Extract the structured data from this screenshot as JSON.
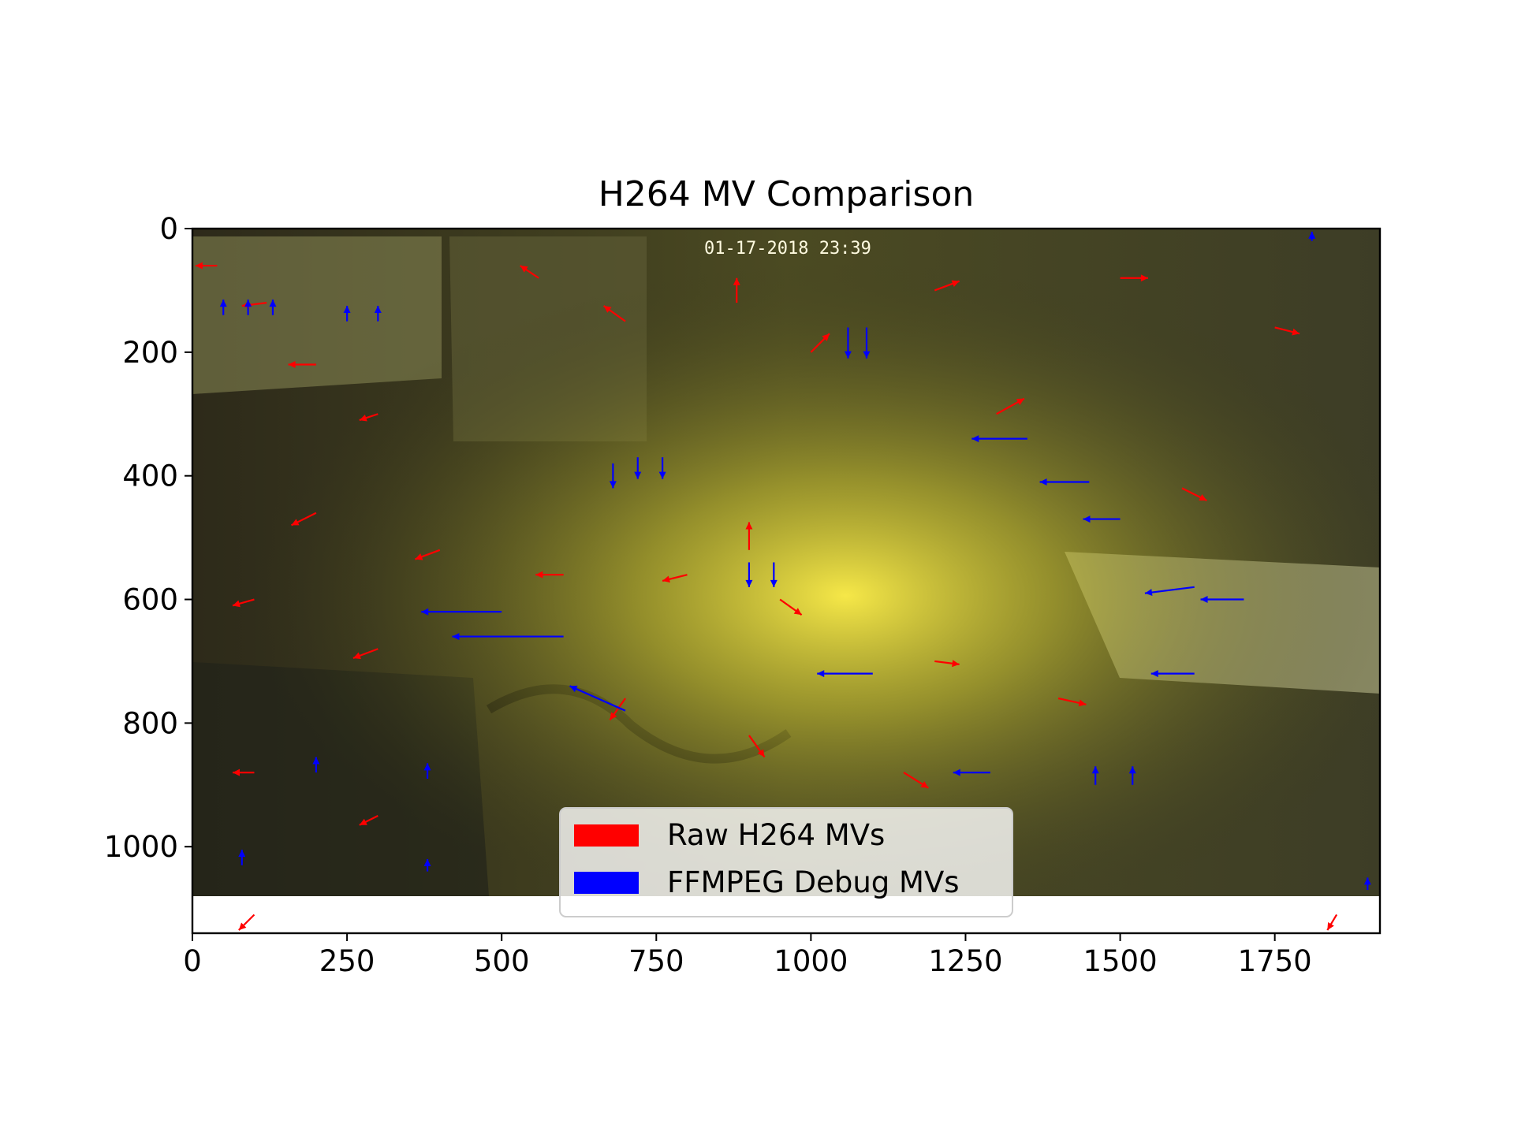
{
  "chart_data": {
    "type": "scatter",
    "subtype": "quiver",
    "title": "H264 MV Comparison",
    "xlabel": "",
    "ylabel": "",
    "xlim": [
      0,
      1920
    ],
    "ylim": [
      1140,
      0
    ],
    "y_inverted": true,
    "x_ticks": [
      0,
      250,
      500,
      750,
      1000,
      1250,
      1500,
      1750
    ],
    "x_tick_labels": [
      "0",
      "250",
      "500",
      "750",
      "1000",
      "1250",
      "1500",
      "1750"
    ],
    "y_ticks": [
      0,
      200,
      400,
      600,
      800,
      1000
    ],
    "y_tick_labels": [
      "0",
      "200",
      "400",
      "600",
      "800",
      "1000"
    ],
    "grid": false,
    "legend_position": "bottom-center",
    "background_image": {
      "description": "video frame underlay",
      "width": 1920,
      "height": 1080
    },
    "frame_timestamp_text": "01-17-2018 23:39",
    "series": [
      {
        "name": "Raw H264 MVs",
        "color": "#ff0000",
        "vectors": [
          {
            "x": 40,
            "y": 60,
            "dx": -35,
            "dy": 0
          },
          {
            "x": 120,
            "y": 120,
            "dx": -40,
            "dy": 5
          },
          {
            "x": 200,
            "y": 220,
            "dx": -45,
            "dy": 0
          },
          {
            "x": 300,
            "y": 300,
            "dx": -30,
            "dy": 10
          },
          {
            "x": 560,
            "y": 80,
            "dx": -30,
            "dy": -20
          },
          {
            "x": 700,
            "y": 150,
            "dx": -35,
            "dy": -25
          },
          {
            "x": 880,
            "y": 120,
            "dx": 0,
            "dy": -40
          },
          {
            "x": 1000,
            "y": 200,
            "dx": 30,
            "dy": -30
          },
          {
            "x": 1200,
            "y": 100,
            "dx": 40,
            "dy": -15
          },
          {
            "x": 1500,
            "y": 80,
            "dx": 45,
            "dy": 0
          },
          {
            "x": 1750,
            "y": 160,
            "dx": 40,
            "dy": 10
          },
          {
            "x": 1300,
            "y": 300,
            "dx": 45,
            "dy": -25
          },
          {
            "x": 1600,
            "y": 420,
            "dx": 40,
            "dy": 20
          },
          {
            "x": 900,
            "y": 520,
            "dx": 0,
            "dy": -45
          },
          {
            "x": 950,
            "y": 600,
            "dx": 35,
            "dy": 25
          },
          {
            "x": 800,
            "y": 560,
            "dx": -40,
            "dy": 10
          },
          {
            "x": 600,
            "y": 560,
            "dx": -45,
            "dy": 0
          },
          {
            "x": 400,
            "y": 520,
            "dx": -40,
            "dy": 15
          },
          {
            "x": 200,
            "y": 460,
            "dx": -40,
            "dy": 20
          },
          {
            "x": 100,
            "y": 600,
            "dx": -35,
            "dy": 10
          },
          {
            "x": 300,
            "y": 680,
            "dx": -40,
            "dy": 15
          },
          {
            "x": 700,
            "y": 760,
            "dx": -25,
            "dy": 35
          },
          {
            "x": 900,
            "y": 820,
            "dx": 25,
            "dy": 35
          },
          {
            "x": 1150,
            "y": 880,
            "dx": 40,
            "dy": 25
          },
          {
            "x": 1400,
            "y": 760,
            "dx": 45,
            "dy": 10
          },
          {
            "x": 1200,
            "y": 700,
            "dx": 40,
            "dy": 5
          },
          {
            "x": 100,
            "y": 880,
            "dx": -35,
            "dy": 0
          },
          {
            "x": 300,
            "y": 950,
            "dx": -30,
            "dy": 15
          },
          {
            "x": 100,
            "y": 1110,
            "dx": -25,
            "dy": 25
          },
          {
            "x": 1850,
            "y": 1110,
            "dx": -15,
            "dy": 25
          }
        ]
      },
      {
        "name": "FFMPEG Debug MVs",
        "color": "#0000ff",
        "vectors": [
          {
            "x": 50,
            "y": 140,
            "dx": 0,
            "dy": -25
          },
          {
            "x": 90,
            "y": 140,
            "dx": 0,
            "dy": -25
          },
          {
            "x": 130,
            "y": 140,
            "dx": 0,
            "dy": -25
          },
          {
            "x": 250,
            "y": 150,
            "dx": 0,
            "dy": -25
          },
          {
            "x": 300,
            "y": 150,
            "dx": 0,
            "dy": -25
          },
          {
            "x": 680,
            "y": 380,
            "dx": 0,
            "dy": 40
          },
          {
            "x": 720,
            "y": 370,
            "dx": 0,
            "dy": 35
          },
          {
            "x": 760,
            "y": 370,
            "dx": 0,
            "dy": 35
          },
          {
            "x": 1060,
            "y": 160,
            "dx": 0,
            "dy": 50
          },
          {
            "x": 1090,
            "y": 160,
            "dx": 0,
            "dy": 50
          },
          {
            "x": 900,
            "y": 540,
            "dx": 0,
            "dy": 40
          },
          {
            "x": 940,
            "y": 540,
            "dx": 0,
            "dy": 40
          },
          {
            "x": 1350,
            "y": 340,
            "dx": -90,
            "dy": 0
          },
          {
            "x": 1450,
            "y": 410,
            "dx": -80,
            "dy": 0
          },
          {
            "x": 1500,
            "y": 470,
            "dx": -60,
            "dy": 0
          },
          {
            "x": 1620,
            "y": 580,
            "dx": -80,
            "dy": 10
          },
          {
            "x": 1700,
            "y": 600,
            "dx": -70,
            "dy": 0
          },
          {
            "x": 1620,
            "y": 720,
            "dx": -70,
            "dy": 0
          },
          {
            "x": 1100,
            "y": 720,
            "dx": -90,
            "dy": 0
          },
          {
            "x": 600,
            "y": 660,
            "dx": -180,
            "dy": 0
          },
          {
            "x": 500,
            "y": 620,
            "dx": -130,
            "dy": 0
          },
          {
            "x": 700,
            "y": 780,
            "dx": -90,
            "dy": -40
          },
          {
            "x": 200,
            "y": 880,
            "dx": 0,
            "dy": -25
          },
          {
            "x": 380,
            "y": 890,
            "dx": 0,
            "dy": -25
          },
          {
            "x": 1460,
            "y": 900,
            "dx": 0,
            "dy": -30
          },
          {
            "x": 1520,
            "y": 900,
            "dx": 0,
            "dy": -30
          },
          {
            "x": 80,
            "y": 1030,
            "dx": 0,
            "dy": -25
          },
          {
            "x": 380,
            "y": 1040,
            "dx": 0,
            "dy": -20
          },
          {
            "x": 1290,
            "y": 880,
            "dx": -60,
            "dy": 0
          },
          {
            "x": 1810,
            "y": 20,
            "dx": 0,
            "dy": -15
          },
          {
            "x": 1900,
            "y": 1070,
            "dx": 0,
            "dy": -20
          }
        ]
      }
    ]
  }
}
